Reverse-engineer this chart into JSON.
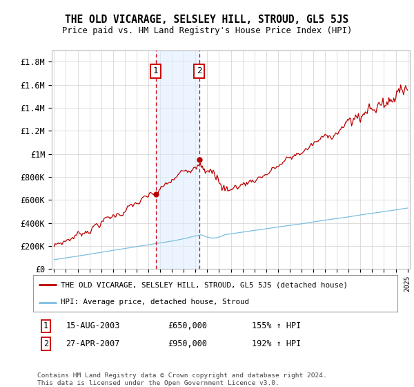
{
  "title": "THE OLD VICARAGE, SELSLEY HILL, STROUD, GL5 5JS",
  "subtitle": "Price paid vs. HM Land Registry's House Price Index (HPI)",
  "legend_line1": "THE OLD VICARAGE, SELSLEY HILL, STROUD, GL5 5JS (detached house)",
  "legend_line2": "HPI: Average price, detached house, Stroud",
  "footer_line1": "Contains HM Land Registry data © Crown copyright and database right 2024.",
  "footer_line2": "This data is licensed under the Open Government Licence v3.0.",
  "transaction1_date": "15-AUG-2003",
  "transaction1_price": "£650,000",
  "transaction1_hpi": "155% ↑ HPI",
  "transaction2_date": "27-APR-2007",
  "transaction2_price": "£950,000",
  "transaction2_hpi": "192% ↑ HPI",
  "sale1_year": 2003.62,
  "sale1_price": 650000,
  "sale2_year": 2007.32,
  "sale2_price": 950000,
  "hpi_color": "#7bbde0",
  "price_color": "#bb0000",
  "shading_color": "#ddeeff",
  "vline_color": "#cc0000",
  "ylim_min": 0,
  "ylim_max": 1900000,
  "yticks": [
    0,
    200000,
    400000,
    600000,
    800000,
    1000000,
    1200000,
    1400000,
    1600000,
    1800000
  ],
  "ytick_labels": [
    "£0",
    "£200K",
    "£400K",
    "£600K",
    "£800K",
    "£1M",
    "£1.2M",
    "£1.4M",
    "£1.6M",
    "£1.8M"
  ],
  "start_year": 1995,
  "end_year": 2025
}
